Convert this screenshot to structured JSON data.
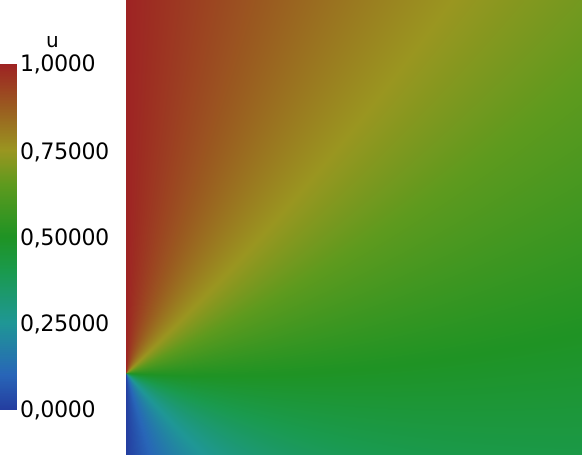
{
  "field": {
    "name": "u",
    "range": [
      0.0,
      1.0
    ],
    "source_point": "left edge, near bottom"
  },
  "colorbar": {
    "title": "u",
    "ticks": [
      {
        "value": 1.0,
        "label": "1,0000"
      },
      {
        "value": 0.75,
        "label": "0,75000"
      },
      {
        "value": 0.5,
        "label": "0,50000"
      },
      {
        "value": 0.25,
        "label": "0,25000"
      },
      {
        "value": 0.0,
        "label": "0,0000"
      }
    ],
    "colormap": [
      {
        "value": 0.0,
        "color": "#243ea0"
      },
      {
        "value": 0.1,
        "color": "#2866b8"
      },
      {
        "value": 0.25,
        "color": "#1f9796"
      },
      {
        "value": 0.4,
        "color": "#1a9a4e"
      },
      {
        "value": 0.5,
        "color": "#1f9324"
      },
      {
        "value": 0.65,
        "color": "#5e9a1e"
      },
      {
        "value": 0.75,
        "color": "#9a9620"
      },
      {
        "value": 0.87,
        "color": "#9a5e20"
      },
      {
        "value": 1.0,
        "color": "#9e2323"
      }
    ]
  },
  "background": "#ffffff"
}
